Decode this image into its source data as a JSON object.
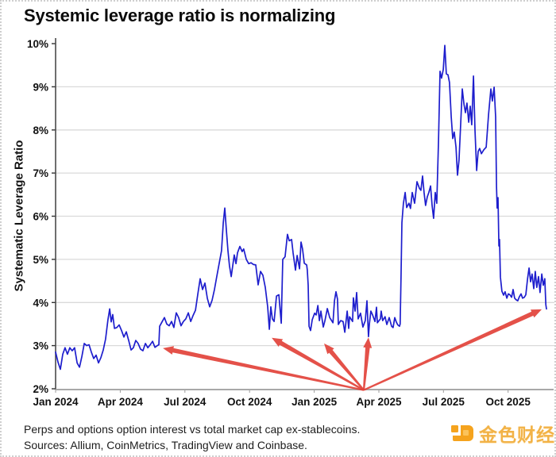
{
  "page": {
    "title": "Systemic leverage ratio is normalizing",
    "footnote_line1": "Perps and options option interest vs total market cap ex-stablecoins.",
    "footnote_line2": "Sources: Allium, CoinMetrics, TradingView and Coinbase.",
    "watermark": {
      "brand_text": "金色财经",
      "icon": "jinse-finance-logo-icon",
      "brand_color": "#f5a31e"
    }
  },
  "chart_data": {
    "type": "line",
    "title": "Systemic leverage ratio is normalizing",
    "xlabel": "",
    "ylabel": "Systematic Leverage Ratio",
    "x_unit": "months since Jan 2024",
    "xlim_months": [
      0,
      23
    ],
    "ylim": [
      2,
      10
    ],
    "grid": "horizontal",
    "legend": "none",
    "line_color": "#1e1ecd",
    "arrow_color": "#e2423a",
    "x_tick_months": [
      0,
      3,
      6,
      9,
      12,
      15,
      18,
      21
    ],
    "x_tick_labels": [
      "Jan 2024",
      "Apr 2024",
      "Jul 2024",
      "Oct 2024",
      "Jan 2025",
      "Apr 2025",
      "Jul 2025",
      "Oct 2025"
    ],
    "y_ticks": [
      2,
      3,
      4,
      5,
      6,
      7,
      8,
      9,
      10
    ],
    "y_tick_labels": [
      "2%",
      "3%",
      "4%",
      "5%",
      "6%",
      "7%",
      "8%",
      "9%",
      "10%"
    ],
    "series": [
      {
        "name": "Systematic Leverage Ratio",
        "points": [
          [
            0.0,
            2.85
          ],
          [
            0.11,
            2.62
          ],
          [
            0.22,
            2.45
          ],
          [
            0.33,
            2.8
          ],
          [
            0.44,
            2.95
          ],
          [
            0.55,
            2.8
          ],
          [
            0.66,
            2.95
          ],
          [
            0.77,
            2.88
          ],
          [
            0.88,
            2.95
          ],
          [
            1.0,
            2.6
          ],
          [
            1.11,
            2.5
          ],
          [
            1.22,
            2.75
          ],
          [
            1.33,
            3.05
          ],
          [
            1.44,
            3.0
          ],
          [
            1.55,
            3.02
          ],
          [
            1.66,
            2.85
          ],
          [
            1.77,
            2.7
          ],
          [
            1.88,
            2.78
          ],
          [
            1.99,
            2.6
          ],
          [
            2.1,
            2.72
          ],
          [
            2.21,
            2.9
          ],
          [
            2.32,
            3.15
          ],
          [
            2.43,
            3.6
          ],
          [
            2.51,
            3.85
          ],
          [
            2.58,
            3.55
          ],
          [
            2.65,
            3.72
          ],
          [
            2.73,
            3.4
          ],
          [
            2.84,
            3.42
          ],
          [
            2.95,
            3.48
          ],
          [
            3.06,
            3.35
          ],
          [
            3.17,
            3.2
          ],
          [
            3.28,
            3.32
          ],
          [
            3.39,
            3.12
          ],
          [
            3.5,
            2.9
          ],
          [
            3.61,
            2.95
          ],
          [
            3.72,
            3.12
          ],
          [
            3.83,
            3.05
          ],
          [
            3.94,
            2.92
          ],
          [
            4.05,
            2.88
          ],
          [
            4.17,
            3.05
          ],
          [
            4.28,
            2.95
          ],
          [
            4.39,
            3.02
          ],
          [
            4.5,
            3.1
          ],
          [
            4.61,
            2.96
          ],
          [
            4.72,
            3.0
          ],
          [
            4.79,
            3.02
          ],
          [
            4.83,
            3.45
          ],
          [
            4.94,
            3.55
          ],
          [
            5.05,
            3.65
          ],
          [
            5.16,
            3.5
          ],
          [
            5.27,
            3.46
          ],
          [
            5.38,
            3.56
          ],
          [
            5.49,
            3.42
          ],
          [
            5.6,
            3.76
          ],
          [
            5.71,
            3.65
          ],
          [
            5.82,
            3.46
          ],
          [
            5.93,
            3.56
          ],
          [
            6.04,
            3.62
          ],
          [
            6.16,
            3.76
          ],
          [
            6.27,
            3.56
          ],
          [
            6.38,
            3.7
          ],
          [
            6.49,
            3.82
          ],
          [
            6.6,
            4.2
          ],
          [
            6.71,
            4.55
          ],
          [
            6.82,
            4.3
          ],
          [
            6.93,
            4.45
          ],
          [
            7.04,
            4.1
          ],
          [
            7.15,
            3.9
          ],
          [
            7.26,
            4.05
          ],
          [
            7.37,
            4.3
          ],
          [
            7.48,
            4.6
          ],
          [
            7.59,
            4.9
          ],
          [
            7.7,
            5.2
          ],
          [
            7.78,
            5.85
          ],
          [
            7.85,
            6.19
          ],
          [
            7.92,
            5.7
          ],
          [
            8.0,
            5.2
          ],
          [
            8.07,
            4.85
          ],
          [
            8.15,
            4.6
          ],
          [
            8.22,
            4.85
          ],
          [
            8.29,
            5.1
          ],
          [
            8.37,
            4.9
          ],
          [
            8.44,
            5.15
          ],
          [
            8.55,
            5.3
          ],
          [
            8.66,
            5.18
          ],
          [
            8.73,
            5.24
          ],
          [
            8.85,
            5.0
          ],
          [
            8.96,
            4.9
          ],
          [
            9.07,
            4.92
          ],
          [
            9.18,
            4.88
          ],
          [
            9.29,
            4.87
          ],
          [
            9.4,
            4.41
          ],
          [
            9.51,
            4.72
          ],
          [
            9.62,
            4.63
          ],
          [
            9.73,
            4.35
          ],
          [
            9.84,
            3.9
          ],
          [
            9.92,
            3.38
          ],
          [
            9.99,
            3.9
          ],
          [
            10.06,
            3.62
          ],
          [
            10.14,
            3.56
          ],
          [
            10.25,
            4.15
          ],
          [
            10.36,
            4.18
          ],
          [
            10.47,
            3.52
          ],
          [
            10.54,
            5.0
          ],
          [
            10.65,
            5.06
          ],
          [
            10.76,
            5.58
          ],
          [
            10.84,
            5.43
          ],
          [
            10.95,
            5.46
          ],
          [
            11.02,
            5.15
          ],
          [
            11.13,
            4.75
          ],
          [
            11.21,
            5.09
          ],
          [
            11.32,
            4.78
          ],
          [
            11.39,
            5.4
          ],
          [
            11.46,
            5.24
          ],
          [
            11.54,
            4.91
          ],
          [
            11.65,
            4.87
          ],
          [
            11.68,
            4.75
          ],
          [
            11.72,
            4.4
          ],
          [
            11.76,
            3.45
          ],
          [
            11.83,
            3.35
          ],
          [
            11.91,
            3.6
          ],
          [
            12.02,
            3.75
          ],
          [
            12.09,
            3.71
          ],
          [
            12.17,
            3.93
          ],
          [
            12.24,
            3.58
          ],
          [
            12.31,
            3.8
          ],
          [
            12.42,
            3.43
          ],
          [
            12.5,
            3.58
          ],
          [
            12.61,
            3.86
          ],
          [
            12.72,
            3.65
          ],
          [
            12.87,
            3.53
          ],
          [
            12.94,
            4.04
          ],
          [
            13.01,
            4.25
          ],
          [
            13.08,
            4.08
          ],
          [
            13.12,
            3.49
          ],
          [
            13.23,
            3.58
          ],
          [
            13.34,
            3.56
          ],
          [
            13.42,
            3.31
          ],
          [
            13.53,
            3.8
          ],
          [
            13.6,
            3.4
          ],
          [
            13.64,
            3.67
          ],
          [
            13.78,
            3.56
          ],
          [
            13.82,
            4.11
          ],
          [
            13.9,
            3.8
          ],
          [
            13.97,
            4.23
          ],
          [
            14.04,
            3.62
          ],
          [
            14.15,
            3.75
          ],
          [
            14.26,
            3.43
          ],
          [
            14.37,
            3.58
          ],
          [
            14.45,
            4.04
          ],
          [
            14.52,
            3.21
          ],
          [
            14.56,
            3.49
          ],
          [
            14.63,
            3.8
          ],
          [
            14.71,
            3.71
          ],
          [
            14.82,
            3.56
          ],
          [
            14.89,
            3.89
          ],
          [
            14.93,
            3.53
          ],
          [
            15.07,
            3.62
          ],
          [
            15.11,
            3.8
          ],
          [
            15.18,
            3.58
          ],
          [
            15.29,
            3.67
          ],
          [
            15.37,
            3.49
          ],
          [
            15.48,
            3.65
          ],
          [
            15.59,
            3.45
          ],
          [
            15.66,
            3.42
          ],
          [
            15.74,
            3.65
          ],
          [
            15.81,
            3.55
          ],
          [
            15.88,
            3.48
          ],
          [
            15.96,
            3.45
          ],
          [
            15.99,
            3.5
          ],
          [
            16.03,
            4.6
          ],
          [
            16.07,
            5.85
          ],
          [
            16.14,
            6.3
          ],
          [
            16.22,
            6.55
          ],
          [
            16.29,
            6.2
          ],
          [
            16.4,
            6.3
          ],
          [
            16.47,
            6.18
          ],
          [
            16.55,
            6.55
          ],
          [
            16.66,
            6.3
          ],
          [
            16.77,
            6.8
          ],
          [
            16.88,
            6.65
          ],
          [
            16.95,
            6.6
          ],
          [
            17.03,
            6.93
          ],
          [
            17.1,
            6.55
          ],
          [
            17.17,
            6.25
          ],
          [
            17.25,
            6.45
          ],
          [
            17.32,
            6.55
          ],
          [
            17.4,
            6.7
          ],
          [
            17.47,
            6.25
          ],
          [
            17.54,
            5.95
          ],
          [
            17.62,
            6.55
          ],
          [
            17.69,
            6.3
          ],
          [
            17.77,
            7.76
          ],
          [
            17.84,
            9.36
          ],
          [
            17.91,
            9.2
          ],
          [
            17.99,
            9.4
          ],
          [
            18.06,
            9.96
          ],
          [
            18.13,
            9.3
          ],
          [
            18.21,
            9.28
          ],
          [
            18.28,
            9.1
          ],
          [
            18.36,
            8.3
          ],
          [
            18.43,
            7.8
          ],
          [
            18.5,
            7.95
          ],
          [
            18.58,
            7.6
          ],
          [
            18.65,
            6.95
          ],
          [
            18.72,
            7.3
          ],
          [
            18.8,
            8.18
          ],
          [
            18.87,
            8.95
          ],
          [
            18.95,
            8.6
          ],
          [
            19.02,
            8.4
          ],
          [
            19.09,
            8.62
          ],
          [
            19.17,
            8.18
          ],
          [
            19.24,
            8.55
          ],
          [
            19.31,
            8.12
          ],
          [
            19.39,
            9.25
          ],
          [
            19.46,
            8.0
          ],
          [
            19.54,
            7.06
          ],
          [
            19.61,
            7.5
          ],
          [
            19.68,
            7.57
          ],
          [
            19.76,
            7.45
          ],
          [
            19.87,
            7.54
          ],
          [
            19.98,
            7.6
          ],
          [
            20.09,
            8.36
          ],
          [
            20.2,
            8.95
          ],
          [
            20.27,
            8.67
          ],
          [
            20.35,
            8.99
          ],
          [
            20.42,
            8.3
          ],
          [
            20.46,
            6.69
          ],
          [
            20.49,
            6.19
          ],
          [
            20.53,
            6.43
          ],
          [
            20.57,
            5.31
          ],
          [
            20.6,
            5.46
          ],
          [
            20.64,
            4.59
          ],
          [
            20.68,
            4.4
          ],
          [
            20.71,
            4.26
          ],
          [
            20.79,
            4.17
          ],
          [
            20.86,
            4.25
          ],
          [
            20.94,
            4.1
          ],
          [
            21.01,
            4.2
          ],
          [
            21.08,
            4.18
          ],
          [
            21.16,
            4.12
          ],
          [
            21.23,
            4.3
          ],
          [
            21.3,
            4.1
          ],
          [
            21.38,
            4.06
          ],
          [
            21.45,
            4.04
          ],
          [
            21.52,
            4.13
          ],
          [
            21.6,
            4.2
          ],
          [
            21.67,
            4.1
          ],
          [
            21.75,
            4.12
          ],
          [
            21.82,
            4.18
          ],
          [
            21.9,
            4.55
          ],
          [
            21.97,
            4.8
          ],
          [
            22.04,
            4.48
          ],
          [
            22.11,
            4.66
          ],
          [
            22.19,
            4.32
          ],
          [
            22.26,
            4.72
          ],
          [
            22.33,
            4.35
          ],
          [
            22.41,
            4.6
          ],
          [
            22.48,
            4.23
          ],
          [
            22.56,
            4.66
          ],
          [
            22.63,
            4.4
          ],
          [
            22.7,
            4.55
          ],
          [
            22.75,
            3.95
          ],
          [
            22.78,
            3.85
          ]
        ]
      }
    ],
    "annotations": {
      "arrows": [
        {
          "from": [
            14.3,
            1.97
          ],
          "to": [
            4.98,
            2.94
          ]
        },
        {
          "from": [
            14.3,
            1.97
          ],
          "to": [
            10.03,
            3.18
          ]
        },
        {
          "from": [
            14.3,
            1.97
          ],
          "to": [
            12.46,
            3.05
          ]
        },
        {
          "from": [
            14.3,
            1.97
          ],
          "to": [
            14.52,
            3.19
          ]
        },
        {
          "from": [
            14.3,
            1.97
          ],
          "to": [
            22.56,
            3.84
          ]
        }
      ]
    }
  }
}
